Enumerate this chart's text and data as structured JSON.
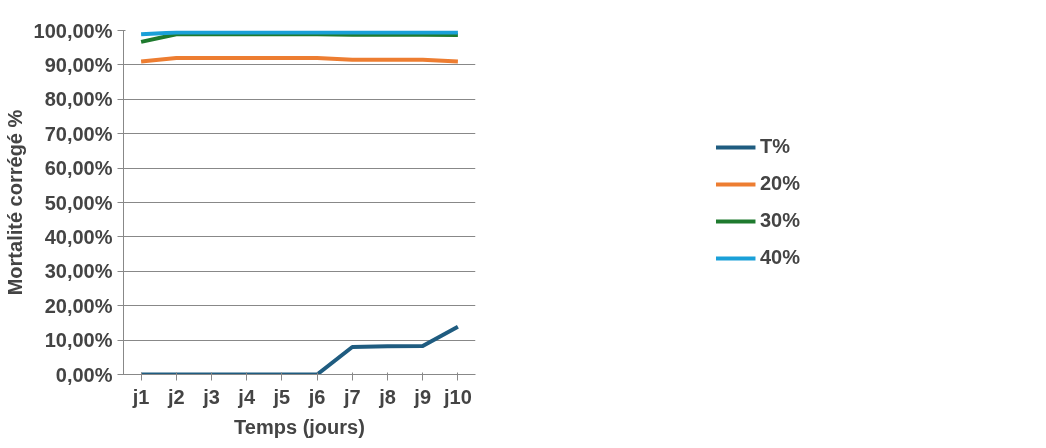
{
  "chart_data": {
    "type": "line",
    "xlabel": "Temps (jours)",
    "ylabel": "Mortalité corrégé %",
    "categories": [
      "j1",
      "j2",
      "j3",
      "j4",
      "j5",
      "j6",
      "j7",
      "j8",
      "j9",
      "j10"
    ],
    "series": [
      {
        "name": "T%",
        "color": "#1f5c80",
        "values": [
          0,
          0,
          0,
          0,
          0,
          0,
          8,
          8.2,
          8.3,
          13.9
        ]
      },
      {
        "name": "20%",
        "color": "#ed7d31",
        "values": [
          91,
          92,
          92,
          92,
          92,
          92,
          91.5,
          91.5,
          91.5,
          91
        ]
      },
      {
        "name": "30%",
        "color": "#1e7a2e",
        "values": [
          96.7,
          98.9,
          98.9,
          98.9,
          98.9,
          98.9,
          98.8,
          98.8,
          98.8,
          98.7
        ]
      },
      {
        "name": "40%",
        "color": "#1aa0d8",
        "values": [
          98.9,
          99.4,
          99.4,
          99.4,
          99.4,
          99.4,
          99.4,
          99.4,
          99.4,
          99.4
        ]
      }
    ],
    "ylim": [
      0,
      100
    ],
    "yticks": [
      {
        "value": 0,
        "label": "0,00%"
      },
      {
        "value": 10,
        "label": "10,00%"
      },
      {
        "value": 20,
        "label": "20,00%"
      },
      {
        "value": 30,
        "label": "30,00%"
      },
      {
        "value": 40,
        "label": "40,00%"
      },
      {
        "value": 50,
        "label": "50,00%"
      },
      {
        "value": 60,
        "label": "60,00%"
      },
      {
        "value": 70,
        "label": "70,00%"
      },
      {
        "value": 80,
        "label": "80,00%"
      },
      {
        "value": 90,
        "label": "90,00%"
      },
      {
        "value": 100,
        "label": "100,00%"
      }
    ],
    "grid": "y",
    "legend": "right",
    "marker": "none",
    "line_style": "solid"
  }
}
